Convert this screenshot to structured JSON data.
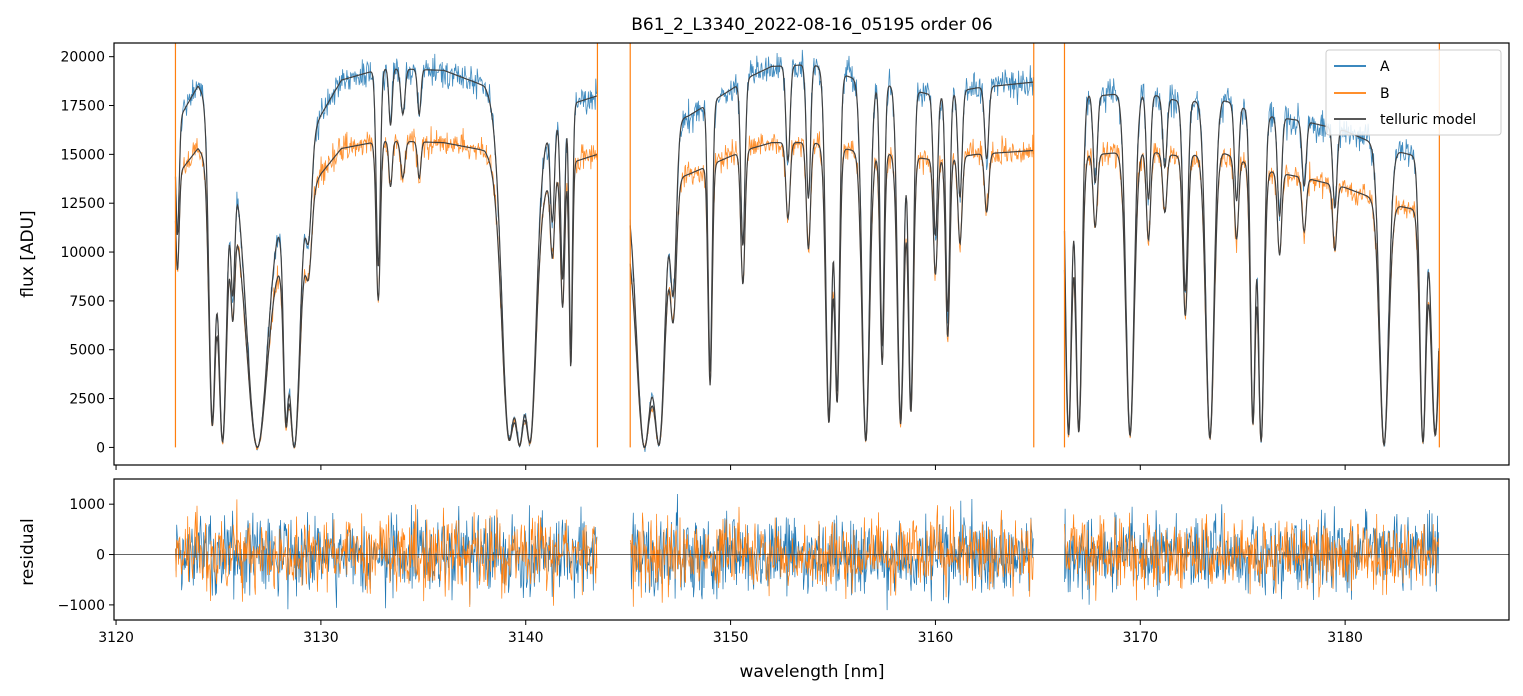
{
  "chart_data": {
    "type": "line",
    "title": "B61_2_L3340_2022-08-16_05195  order 06",
    "xlabel": "wavelength [nm]",
    "x_ticks": [
      "3120",
      "3130",
      "3140",
      "3150",
      "3160",
      "3170",
      "3180"
    ],
    "xlim": [
      3119.9,
      3188.0
    ],
    "colors": {
      "A": "#1f77b4",
      "B": "#ff7f0e",
      "model": "#404040"
    },
    "panels": [
      {
        "id": "flux",
        "ylabel": "flux [ADU]",
        "ylim": [
          -900,
          20700
        ],
        "y_ticks": [
          "0",
          "2500",
          "5000",
          "7500",
          "10000",
          "12500",
          "15000",
          "17500",
          "20000"
        ],
        "legend": {
          "location": "upper right",
          "entries": [
            "A",
            "B",
            "telluric model"
          ]
        },
        "segments": [
          [
            3122.9,
            3143.5
          ],
          [
            3145.1,
            3164.8
          ],
          [
            3166.3,
            3184.6
          ]
        ],
        "continuum": {
          "x": [
            3122.9,
            3124.0,
            3126.0,
            3128.0,
            3130.0,
            3131.0,
            3133.0,
            3136.0,
            3138.0,
            3140.0,
            3141.0,
            3142.0,
            3143.5,
            3145.1,
            3146.0,
            3148.0,
            3150.0,
            3151.0,
            3152.0,
            3154.0,
            3156.0,
            3158.0,
            3160.0,
            3162.0,
            3164.8,
            3166.3,
            3168.0,
            3170.0,
            3172.0,
            3174.0,
            3176.0,
            3178.0,
            3180.0,
            3182.0,
            3184.6
          ],
          "A": [
            16500,
            18500,
            15000,
            12500,
            17000,
            18800,
            19400,
            19300,
            18500,
            15000,
            16000,
            17500,
            18000,
            14500,
            16000,
            17000,
            18300,
            19000,
            19500,
            19600,
            18900,
            18500,
            18000,
            18400,
            18700,
            18300,
            18000,
            18200,
            17700,
            17800,
            17000,
            16700,
            16200,
            15300,
            14600
          ],
          "B": [
            13800,
            15300,
            12500,
            10200,
            14000,
            15300,
            15700,
            15600,
            15200,
            12500,
            13500,
            14500,
            15000,
            12000,
            13200,
            14000,
            14900,
            15300,
            15600,
            15600,
            15200,
            15000,
            14700,
            15000,
            15200,
            15000,
            15000,
            15200,
            14900,
            15100,
            14200,
            13800,
            13300,
            12500,
            11900
          ]
        },
        "absorption_lines": [
          {
            "x": 3123.0,
            "depth": 0.35,
            "width": 0.08
          },
          {
            "x": 3124.7,
            "depth": 0.92,
            "width": 0.16
          },
          {
            "x": 3125.2,
            "depth": 0.98,
            "width": 0.2
          },
          {
            "x": 3125.7,
            "depth": 0.45,
            "width": 0.1
          },
          {
            "x": 3126.9,
            "depth": 1.0,
            "width": 0.5
          },
          {
            "x": 3128.3,
            "depth": 0.85,
            "width": 0.12
          },
          {
            "x": 3128.7,
            "depth": 1.0,
            "width": 0.28
          },
          {
            "x": 3129.4,
            "depth": 0.3,
            "width": 0.15
          },
          {
            "x": 3132.8,
            "depth": 0.52,
            "width": 0.1
          },
          {
            "x": 3133.4,
            "depth": 0.15,
            "width": 0.08
          },
          {
            "x": 3134.0,
            "depth": 0.12,
            "width": 0.1
          },
          {
            "x": 3134.8,
            "depth": 0.12,
            "width": 0.08
          },
          {
            "x": 3139.2,
            "depth": 0.97,
            "width": 0.35
          },
          {
            "x": 3139.7,
            "depth": 0.99,
            "width": 0.25
          },
          {
            "x": 3140.2,
            "depth": 0.98,
            "width": 0.3
          },
          {
            "x": 3141.3,
            "depth": 0.3,
            "width": 0.1
          },
          {
            "x": 3141.8,
            "depth": 0.5,
            "width": 0.1
          },
          {
            "x": 3142.2,
            "depth": 0.72,
            "width": 0.08
          },
          {
            "x": 3145.8,
            "depth": 1.0,
            "width": 0.4
          },
          {
            "x": 3146.5,
            "depth": 0.99,
            "width": 0.3
          },
          {
            "x": 3147.2,
            "depth": 0.5,
            "width": 0.15
          },
          {
            "x": 3149.0,
            "depth": 0.78,
            "width": 0.1
          },
          {
            "x": 3150.6,
            "depth": 0.45,
            "width": 0.1
          },
          {
            "x": 3152.8,
            "depth": 0.25,
            "width": 0.1
          },
          {
            "x": 3153.8,
            "depth": 0.35,
            "width": 0.1
          },
          {
            "x": 3154.8,
            "depth": 0.92,
            "width": 0.15
          },
          {
            "x": 3155.2,
            "depth": 0.85,
            "width": 0.12
          },
          {
            "x": 3156.6,
            "depth": 0.98,
            "width": 0.18
          },
          {
            "x": 3157.4,
            "depth": 0.72,
            "width": 0.1
          },
          {
            "x": 3158.3,
            "depth": 0.92,
            "width": 0.15
          },
          {
            "x": 3158.8,
            "depth": 0.88,
            "width": 0.12
          },
          {
            "x": 3160.0,
            "depth": 0.4,
            "width": 0.1
          },
          {
            "x": 3160.6,
            "depth": 0.62,
            "width": 0.1
          },
          {
            "x": 3161.2,
            "depth": 0.3,
            "width": 0.1
          },
          {
            "x": 3162.5,
            "depth": 0.2,
            "width": 0.1
          },
          {
            "x": 3166.5,
            "depth": 0.96,
            "width": 0.15
          },
          {
            "x": 3167.0,
            "depth": 0.95,
            "width": 0.15
          },
          {
            "x": 3167.8,
            "depth": 0.25,
            "width": 0.1
          },
          {
            "x": 3169.5,
            "depth": 0.96,
            "width": 0.2
          },
          {
            "x": 3170.4,
            "depth": 0.3,
            "width": 0.1
          },
          {
            "x": 3171.2,
            "depth": 0.2,
            "width": 0.1
          },
          {
            "x": 3172.2,
            "depth": 0.55,
            "width": 0.12
          },
          {
            "x": 3173.4,
            "depth": 0.97,
            "width": 0.2
          },
          {
            "x": 3174.7,
            "depth": 0.28,
            "width": 0.1
          },
          {
            "x": 3175.5,
            "depth": 0.92,
            "width": 0.12
          },
          {
            "x": 3175.9,
            "depth": 0.98,
            "width": 0.14
          },
          {
            "x": 3176.8,
            "depth": 0.3,
            "width": 0.1
          },
          {
            "x": 3178.0,
            "depth": 0.2,
            "width": 0.1
          },
          {
            "x": 3179.5,
            "depth": 0.25,
            "width": 0.1
          },
          {
            "x": 3181.9,
            "depth": 0.99,
            "width": 0.22
          },
          {
            "x": 3183.8,
            "depth": 0.98,
            "width": 0.15
          },
          {
            "x": 3184.4,
            "depth": 0.95,
            "width": 0.2
          }
        ]
      },
      {
        "id": "residual",
        "ylabel": "residual",
        "ylim": [
          -1300,
          1500
        ],
        "y_ticks": [
          "−1000",
          "0",
          "1000"
        ],
        "zero_line": true,
        "noise_amplitude": {
          "A": 420,
          "B": 360
        }
      }
    ]
  }
}
